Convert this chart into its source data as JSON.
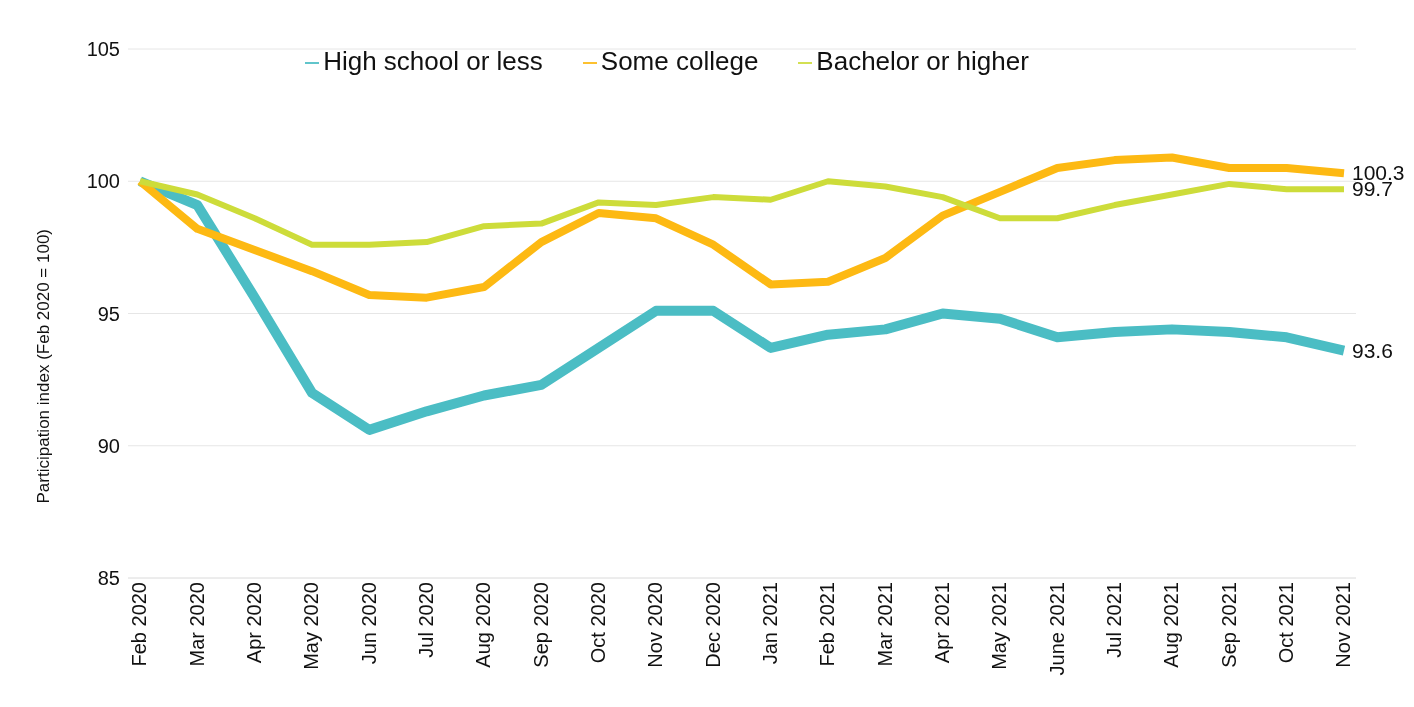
{
  "chart_data": {
    "type": "line",
    "ylabel": "Participation index (Feb 2020 = 100)",
    "categories": [
      "Feb 2020",
      "Mar 2020",
      "Apr 2020",
      "May 2020",
      "Jun 2020",
      "Jul 2020",
      "Aug 2020",
      "Sep 2020",
      "Oct 2020",
      "Nov 2020",
      "Dec 2020",
      "Jan 2021",
      "Feb 2021",
      "Mar 2021",
      "Apr 2021",
      "May 2021",
      "June 2021",
      "Jul 2021",
      "Aug 2021",
      "Sep 2021",
      "Oct 2021",
      "Nov 2021"
    ],
    "series": [
      {
        "name": "High school or less",
        "color": "#4bbdc4",
        "values": [
          100,
          99.1,
          95.6,
          92.0,
          90.6,
          91.3,
          91.9,
          92.3,
          93.7,
          95.1,
          95.1,
          93.7,
          94.2,
          94.4,
          95.0,
          94.8,
          94.1,
          94.3,
          94.4,
          94.3,
          94.1,
          93.6
        ],
        "value_labels": [
          null,
          null,
          null,
          null,
          null,
          null,
          null,
          null,
          null,
          null,
          null,
          null,
          null,
          null,
          null,
          null,
          null,
          null,
          null,
          null,
          null,
          "93.6"
        ]
      },
      {
        "name": "Some college",
        "color": "#fdb913",
        "values": [
          100,
          98.2,
          97.4,
          96.6,
          95.7,
          95.6,
          96.0,
          97.7,
          98.8,
          98.6,
          97.6,
          96.1,
          96.2,
          97.1,
          98.7,
          99.6,
          100.5,
          100.8,
          100.9,
          100.5,
          100.5,
          100.3
        ],
        "value_labels": [
          null,
          null,
          null,
          null,
          null,
          null,
          null,
          null,
          null,
          null,
          null,
          null,
          null,
          null,
          null,
          null,
          null,
          null,
          null,
          null,
          null,
          "100.3"
        ]
      },
      {
        "name": "Bachelor or higher",
        "color": "#cddc3a",
        "values": [
          100,
          99.5,
          98.6,
          97.6,
          97.6,
          97.7,
          98.3,
          98.4,
          99.2,
          99.1,
          99.4,
          99.3,
          100.0,
          99.8,
          99.4,
          98.6,
          98.6,
          99.1,
          99.5,
          99.9,
          99.7,
          99.7
        ],
        "value_labels": [
          null,
          null,
          null,
          null,
          null,
          null,
          null,
          null,
          null,
          null,
          null,
          null,
          null,
          null,
          null,
          null,
          null,
          null,
          null,
          null,
          null,
          "99.7"
        ]
      }
    ],
    "ylim": [
      85,
      105
    ],
    "yticks": [
      85,
      90,
      95,
      100,
      105
    ],
    "grid": "y",
    "legend": "top",
    "marker": "none",
    "line_style": "solid"
  }
}
